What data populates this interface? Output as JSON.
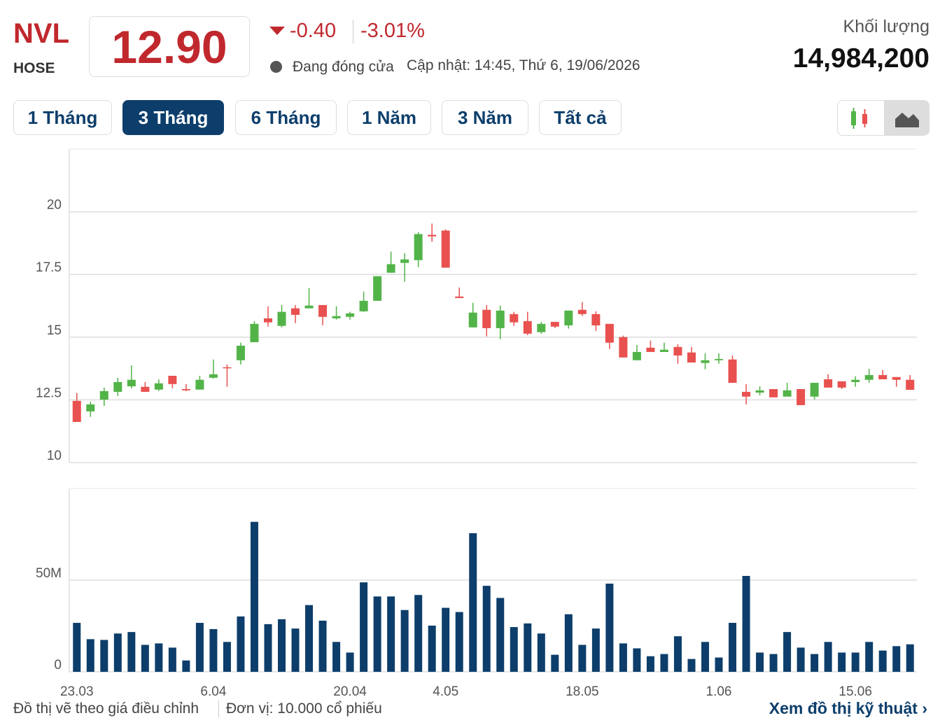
{
  "header": {
    "symbol": "NVL",
    "exchange": "HOSE",
    "price": "12.90",
    "change": "-0.40",
    "change_percent": "-3.01%",
    "status": "Đang đóng cửa",
    "updated": "Cập nhật: 14:45, Thứ 6, 19/06/2026",
    "volume_label": "Khối lượng",
    "volume": "14,984,200"
  },
  "tabs": [
    "1 Tháng",
    "3 Tháng",
    "6 Tháng",
    "1 Năm",
    "3 Năm",
    "Tất cả"
  ],
  "active_tab": 1,
  "chart_data": [
    {
      "type": "candlestick",
      "up_color": "#52b448",
      "down_color": "#e8514f",
      "ylim": [
        10,
        22.5
      ],
      "yticks": [
        10,
        12.5,
        15,
        17.5,
        20
      ],
      "grid": true,
      "open": [
        12.46,
        12.04,
        12.51,
        12.82,
        13.04,
        13.02,
        12.91,
        13.46,
        12.93,
        12.91,
        13.38,
        13.8,
        14.08,
        14.8,
        15.75,
        15.45,
        16.15,
        16.15,
        16.28,
        15.75,
        15.81,
        16.03,
        16.45,
        17.57,
        17.96,
        18.07,
        19.08,
        19.25,
        16.62,
        15.39,
        16.09,
        15.36,
        15.92,
        15.64,
        15.2,
        15.61,
        15.47,
        16.09,
        15.92,
        15.53,
        15.0,
        14.08,
        14.58,
        14.41,
        14.61,
        14.39,
        13.97,
        14.08,
        14.11,
        12.82,
        12.79,
        12.93,
        12.63,
        12.93,
        12.63,
        13.32,
        13.24,
        13.21,
        13.3,
        13.49,
        13.41,
        13.3
      ],
      "high": [
        12.77,
        12.43,
        12.99,
        13.38,
        13.88,
        13.21,
        13.32,
        13.46,
        13.13,
        13.46,
        14.11,
        13.91,
        14.78,
        15.64,
        16.23,
        16.28,
        16.28,
        16.96,
        16.28,
        16.23,
        16.01,
        16.82,
        17.43,
        18.41,
        18.35,
        19.19,
        19.53,
        19.3,
        16.98,
        16.37,
        16.28,
        16.26,
        16.01,
        16.01,
        15.61,
        15.61,
        16.06,
        16.4,
        16.03,
        15.53,
        15.06,
        14.69,
        14.86,
        14.78,
        14.72,
        14.61,
        14.36,
        14.36,
        14.27,
        13.13,
        13.04,
        12.93,
        13.18,
        12.93,
        13.18,
        13.52,
        13.24,
        13.44,
        13.74,
        13.69,
        13.41,
        13.49
      ],
      "low": [
        11.62,
        11.82,
        12.26,
        12.65,
        12.96,
        12.82,
        12.85,
        12.96,
        12.85,
        12.91,
        13.35,
        13.02,
        13.91,
        14.8,
        15.42,
        15.39,
        15.56,
        16.15,
        15.47,
        15.7,
        15.7,
        16.01,
        16.45,
        17.57,
        17.21,
        17.79,
        18.8,
        17.77,
        16.56,
        15.39,
        15.03,
        14.92,
        15.45,
        15.08,
        15.14,
        15.36,
        15.34,
        15.84,
        15.25,
        14.53,
        14.19,
        14.08,
        14.41,
        14.41,
        13.94,
        13.99,
        13.72,
        13.94,
        13.18,
        12.32,
        12.68,
        12.6,
        12.63,
        12.29,
        12.51,
        12.99,
        12.93,
        13.02,
        13.18,
        13.32,
        13.02,
        12.9
      ],
      "close": [
        11.62,
        12.32,
        12.85,
        13.21,
        13.3,
        12.82,
        13.16,
        13.13,
        12.88,
        13.3,
        13.52,
        13.77,
        14.66,
        15.53,
        15.59,
        16.01,
        15.89,
        16.26,
        15.81,
        15.84,
        15.95,
        16.45,
        17.43,
        17.91,
        18.1,
        19.11,
        19.02,
        17.77,
        16.56,
        15.98,
        15.36,
        16.06,
        15.59,
        15.14,
        15.53,
        15.42,
        16.06,
        15.92,
        15.47,
        14.78,
        14.19,
        14.41,
        14.41,
        14.5,
        14.27,
        13.99,
        14.08,
        14.13,
        13.18,
        12.63,
        12.88,
        12.6,
        12.88,
        12.29,
        13.18,
        12.99,
        12.99,
        13.3,
        13.49,
        13.32,
        13.3,
        12.9
      ]
    },
    {
      "type": "bar",
      "color": "#0d3e6b",
      "ylim": [
        0,
        100
      ],
      "yticks": [
        0,
        {
          "value": 50,
          "label": "50M"
        }
      ],
      "grid": true,
      "categories": [
        "23.03",
        null,
        null,
        null,
        null,
        null,
        null,
        null,
        null,
        null,
        "6.04",
        null,
        null,
        null,
        null,
        null,
        null,
        null,
        null,
        null,
        "20.04",
        null,
        null,
        null,
        null,
        null,
        null,
        "4.05",
        null,
        null,
        null,
        null,
        null,
        null,
        null,
        null,
        null,
        "18.05",
        null,
        null,
        null,
        null,
        null,
        null,
        null,
        null,
        null,
        "1.06",
        null,
        null,
        null,
        null,
        null,
        null,
        null,
        null,
        null,
        "15.06",
        null,
        null,
        null,
        null
      ],
      "values": [
        26.7,
        17.8,
        17.4,
        20.9,
        21.7,
        14.7,
        15.5,
        13.2,
        6.2,
        26.7,
        23.3,
        16.3,
        30.2,
        81.8,
        26.0,
        28.7,
        23.6,
        36.4,
        27.9,
        16.3,
        10.5,
        48.8,
        41.1,
        41.1,
        33.7,
        41.9,
        25.2,
        34.9,
        32.6,
        75.6,
        46.9,
        40.3,
        24.4,
        26.4,
        20.9,
        9.3,
        31.4,
        14.7,
        23.6,
        48.1,
        15.5,
        12.8,
        8.5,
        9.7,
        19.4,
        7.0,
        16.3,
        7.8,
        26.7,
        52.3,
        10.5,
        9.7,
        21.7,
        13.2,
        9.7,
        16.3,
        10.5,
        10.5,
        16.3,
        11.6,
        14.0,
        15.0
      ]
    }
  ],
  "footer": {
    "note": "Đồ thị vẽ theo giá điều chỉnh",
    "unit": "Đơn vị: 10.000 cổ phiếu",
    "link": "Xem đồ thị kỹ thuật"
  }
}
